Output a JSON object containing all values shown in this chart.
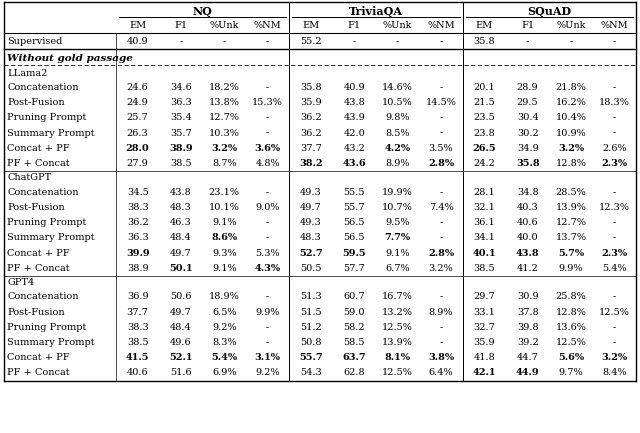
{
  "rows": [
    {
      "label": "Supervised",
      "type": "supervised",
      "nq": [
        "40.9",
        "-",
        "-",
        "-"
      ],
      "tqa": [
        "55.2",
        "-",
        "-",
        "-"
      ],
      "sq": [
        "35.8",
        "-",
        "-",
        "-"
      ],
      "bold_nq": [
        false,
        false,
        false,
        false
      ],
      "bold_tqa": [
        false,
        false,
        false,
        false
      ],
      "bold_sq": [
        false,
        false,
        false,
        false
      ]
    },
    {
      "label": "LLama2",
      "type": "model_header"
    },
    {
      "label": "Concatenation",
      "type": "data",
      "nq": [
        "24.6",
        "34.6",
        "18.2%",
        "-"
      ],
      "tqa": [
        "35.8",
        "40.9",
        "14.6%",
        "-"
      ],
      "sq": [
        "20.1",
        "28.9",
        "21.8%",
        "-"
      ],
      "bold_nq": [
        false,
        false,
        false,
        false
      ],
      "bold_tqa": [
        false,
        false,
        false,
        false
      ],
      "bold_sq": [
        false,
        false,
        false,
        false
      ]
    },
    {
      "label": "Post-Fusion",
      "type": "data",
      "nq": [
        "24.9",
        "36.3",
        "13.8%",
        "15.3%"
      ],
      "tqa": [
        "35.9",
        "43.8",
        "10.5%",
        "14.5%"
      ],
      "sq": [
        "21.5",
        "29.5",
        "16.2%",
        "18.3%"
      ],
      "bold_nq": [
        false,
        false,
        false,
        false
      ],
      "bold_tqa": [
        false,
        false,
        false,
        false
      ],
      "bold_sq": [
        false,
        false,
        false,
        false
      ]
    },
    {
      "label": "Pruning Prompt",
      "type": "data",
      "nq": [
        "25.7",
        "35.4",
        "12.7%",
        "-"
      ],
      "tqa": [
        "36.2",
        "43.9",
        "9.8%",
        "-"
      ],
      "sq": [
        "23.5",
        "30.4",
        "10.4%",
        "-"
      ],
      "bold_nq": [
        false,
        false,
        false,
        false
      ],
      "bold_tqa": [
        false,
        false,
        false,
        false
      ],
      "bold_sq": [
        false,
        false,
        false,
        false
      ]
    },
    {
      "label": "Summary Prompt",
      "type": "data",
      "nq": [
        "26.3",
        "35.7",
        "10.3%",
        "-"
      ],
      "tqa": [
        "36.2",
        "42.0",
        "8.5%",
        "-"
      ],
      "sq": [
        "23.8",
        "30.2",
        "10.9%",
        "-"
      ],
      "bold_nq": [
        false,
        false,
        false,
        false
      ],
      "bold_tqa": [
        false,
        false,
        false,
        false
      ],
      "bold_sq": [
        false,
        false,
        false,
        false
      ]
    },
    {
      "label": "Concat + PF",
      "type": "data",
      "nq": [
        "28.0",
        "38.9",
        "3.2%",
        "3.6%"
      ],
      "tqa": [
        "37.7",
        "43.2",
        "4.2%",
        "3.5%"
      ],
      "sq": [
        "26.5",
        "34.9",
        "3.2%",
        "2.6%"
      ],
      "bold_nq": [
        true,
        true,
        true,
        true
      ],
      "bold_tqa": [
        false,
        false,
        true,
        false
      ],
      "bold_sq": [
        true,
        false,
        true,
        false
      ]
    },
    {
      "label": "PF + Concat",
      "type": "data",
      "nq": [
        "27.9",
        "38.5",
        "8.7%",
        "4.8%"
      ],
      "tqa": [
        "38.2",
        "43.6",
        "8.9%",
        "2.8%"
      ],
      "sq": [
        "24.2",
        "35.8",
        "12.8%",
        "2.3%"
      ],
      "bold_nq": [
        false,
        false,
        false,
        false
      ],
      "bold_tqa": [
        true,
        true,
        false,
        true
      ],
      "bold_sq": [
        false,
        true,
        false,
        true
      ]
    },
    {
      "label": "ChatGPT",
      "type": "model_header"
    },
    {
      "label": "Concatenation",
      "type": "data",
      "nq": [
        "34.5",
        "43.8",
        "23.1%",
        "-"
      ],
      "tqa": [
        "49.3",
        "55.5",
        "19.9%",
        "-"
      ],
      "sq": [
        "28.1",
        "34.8",
        "28.5%",
        "-"
      ],
      "bold_nq": [
        false,
        false,
        false,
        false
      ],
      "bold_tqa": [
        false,
        false,
        false,
        false
      ],
      "bold_sq": [
        false,
        false,
        false,
        false
      ]
    },
    {
      "label": "Post-Fusion",
      "type": "data",
      "nq": [
        "38.3",
        "48.3",
        "10.1%",
        "9.0%"
      ],
      "tqa": [
        "49.7",
        "55.7",
        "10.7%",
        "7.4%"
      ],
      "sq": [
        "32.1",
        "40.3",
        "13.9%",
        "12.3%"
      ],
      "bold_nq": [
        false,
        false,
        false,
        false
      ],
      "bold_tqa": [
        false,
        false,
        false,
        false
      ],
      "bold_sq": [
        false,
        false,
        false,
        false
      ]
    },
    {
      "label": "Pruning Prompt",
      "type": "data",
      "nq": [
        "36.2",
        "46.3",
        "9.1%",
        "-"
      ],
      "tqa": [
        "49.3",
        "56.5",
        "9.5%",
        "-"
      ],
      "sq": [
        "36.1",
        "40.6",
        "12.7%",
        "-"
      ],
      "bold_nq": [
        false,
        false,
        false,
        false
      ],
      "bold_tqa": [
        false,
        false,
        false,
        false
      ],
      "bold_sq": [
        false,
        false,
        false,
        false
      ]
    },
    {
      "label": "Summary Prompt",
      "type": "data",
      "nq": [
        "36.3",
        "48.4",
        "8.6%",
        "-"
      ],
      "tqa": [
        "48.3",
        "56.5",
        "7.7%",
        "-"
      ],
      "sq": [
        "34.1",
        "40.0",
        "13.7%",
        "-"
      ],
      "bold_nq": [
        false,
        false,
        true,
        false
      ],
      "bold_tqa": [
        false,
        false,
        true,
        false
      ],
      "bold_sq": [
        false,
        false,
        false,
        false
      ]
    },
    {
      "label": "Concat + PF",
      "type": "data",
      "nq": [
        "39.9",
        "49.7",
        "9.3%",
        "5.3%"
      ],
      "tqa": [
        "52.7",
        "59.5",
        "9.1%",
        "2.8%"
      ],
      "sq": [
        "40.1",
        "43.8",
        "5.7%",
        "2.3%"
      ],
      "bold_nq": [
        true,
        false,
        false,
        false
      ],
      "bold_tqa": [
        true,
        true,
        false,
        true
      ],
      "bold_sq": [
        true,
        true,
        true,
        true
      ]
    },
    {
      "label": "PF + Concat",
      "type": "data",
      "nq": [
        "38.9",
        "50.1",
        "9.1%",
        "4.3%"
      ],
      "tqa": [
        "50.5",
        "57.7",
        "6.7%",
        "3.2%"
      ],
      "sq": [
        "38.5",
        "41.2",
        "9.9%",
        "5.4%"
      ],
      "bold_nq": [
        false,
        true,
        false,
        true
      ],
      "bold_tqa": [
        false,
        false,
        false,
        false
      ],
      "bold_sq": [
        false,
        false,
        false,
        false
      ]
    },
    {
      "label": "GPT4",
      "type": "model_header"
    },
    {
      "label": "Concatenation",
      "type": "data",
      "nq": [
        "36.9",
        "50.6",
        "18.9%",
        "-"
      ],
      "tqa": [
        "51.3",
        "60.7",
        "16.7%",
        "-"
      ],
      "sq": [
        "29.7",
        "30.9",
        "25.8%",
        "-"
      ],
      "bold_nq": [
        false,
        false,
        false,
        false
      ],
      "bold_tqa": [
        false,
        false,
        false,
        false
      ],
      "bold_sq": [
        false,
        false,
        false,
        false
      ]
    },
    {
      "label": "Post-Fusion",
      "type": "data",
      "nq": [
        "37.7",
        "49.7",
        "6.5%",
        "9.9%"
      ],
      "tqa": [
        "51.5",
        "59.0",
        "13.2%",
        "8.9%"
      ],
      "sq": [
        "33.1",
        "37.8",
        "12.8%",
        "12.5%"
      ],
      "bold_nq": [
        false,
        false,
        false,
        false
      ],
      "bold_tqa": [
        false,
        false,
        false,
        false
      ],
      "bold_sq": [
        false,
        false,
        false,
        false
      ]
    },
    {
      "label": "Pruning Prompt",
      "type": "data",
      "nq": [
        "38.3",
        "48.4",
        "9.2%",
        "-"
      ],
      "tqa": [
        "51.2",
        "58.2",
        "12.5%",
        "-"
      ],
      "sq": [
        "32.7",
        "39.8",
        "13.6%",
        "-"
      ],
      "bold_nq": [
        false,
        false,
        false,
        false
      ],
      "bold_tqa": [
        false,
        false,
        false,
        false
      ],
      "bold_sq": [
        false,
        false,
        false,
        false
      ]
    },
    {
      "label": "Summary Prompt",
      "type": "data",
      "nq": [
        "38.5",
        "49.6",
        "8.3%",
        "-"
      ],
      "tqa": [
        "50.8",
        "58.5",
        "13.9%",
        "-"
      ],
      "sq": [
        "35.9",
        "39.2",
        "12.5%",
        "-"
      ],
      "bold_nq": [
        false,
        false,
        false,
        false
      ],
      "bold_tqa": [
        false,
        false,
        false,
        false
      ],
      "bold_sq": [
        false,
        false,
        false,
        false
      ]
    },
    {
      "label": "Concat + PF",
      "type": "data",
      "nq": [
        "41.5",
        "52.1",
        "5.4%",
        "3.1%"
      ],
      "tqa": [
        "55.7",
        "63.7",
        "8.1%",
        "3.8%"
      ],
      "sq": [
        "41.8",
        "44.7",
        "5.6%",
        "3.2%"
      ],
      "bold_nq": [
        true,
        true,
        true,
        true
      ],
      "bold_tqa": [
        true,
        true,
        true,
        true
      ],
      "bold_sq": [
        false,
        false,
        true,
        true
      ]
    },
    {
      "label": "PF + Concat",
      "type": "data",
      "nq": [
        "40.6",
        "51.6",
        "6.9%",
        "9.2%"
      ],
      "tqa": [
        "54.3",
        "62.8",
        "12.5%",
        "6.4%"
      ],
      "sq": [
        "42.1",
        "44.9",
        "9.7%",
        "8.4%"
      ],
      "bold_nq": [
        false,
        false,
        false,
        false
      ],
      "bold_tqa": [
        false,
        false,
        false,
        false
      ],
      "bold_sq": [
        true,
        true,
        false,
        false
      ]
    }
  ],
  "font_size": 7.0,
  "header_font_size": 8.0,
  "fig_width": 6.4,
  "fig_height": 4.33,
  "dpi": 100
}
